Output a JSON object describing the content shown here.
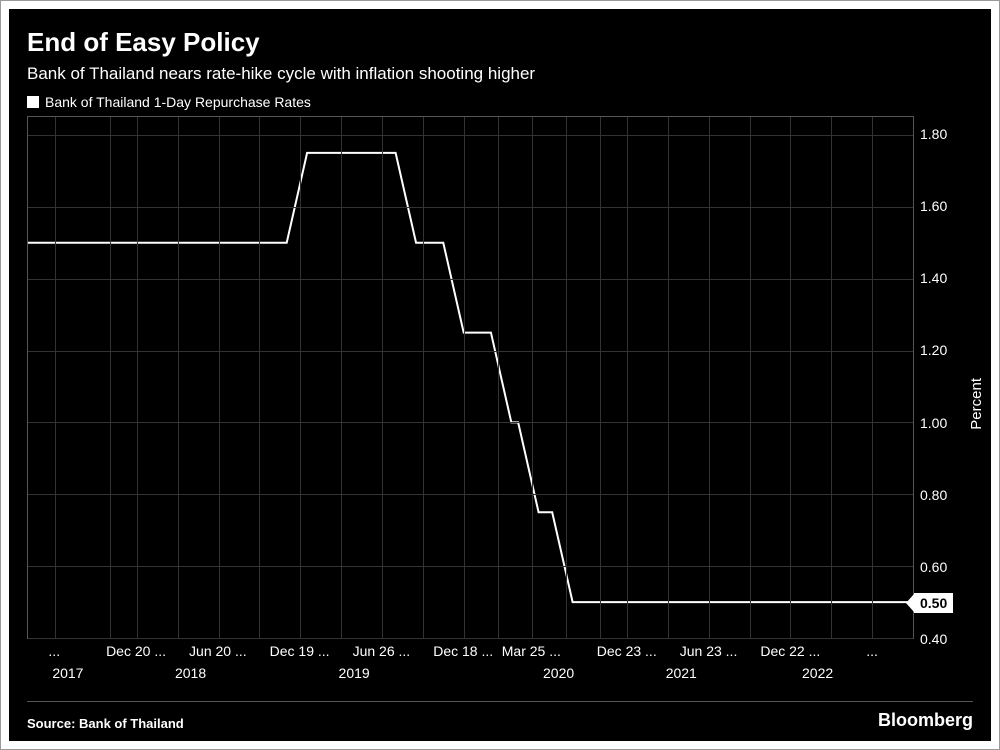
{
  "chart": {
    "type": "line-step",
    "title": "End of Easy Policy",
    "subtitle": "Bank of Thailand nears rate-hike cycle with inflation shooting higher",
    "legend_label": "Bank of Thailand 1-Day Repurchase Rates",
    "source": "Source: Bank of Thailand",
    "brand": "Bloomberg",
    "background_color": "#000000",
    "grid_color": "#333333",
    "text_color": "#ffffff",
    "line_color": "#ffffff",
    "line_width": 2,
    "title_fontsize": 26,
    "subtitle_fontsize": 17,
    "tick_fontsize": 14,
    "y_axis": {
      "label": "Percent",
      "min": 0.4,
      "max": 1.85,
      "ticks": [
        0.4,
        0.6,
        0.8,
        1.0,
        1.2,
        1.4,
        1.6,
        1.8
      ],
      "tick_labels": [
        "0.40",
        "0.60",
        "0.80",
        "1.00",
        "1.20",
        "1.40",
        "1.60",
        "1.80"
      ]
    },
    "x_axis": {
      "min": 0,
      "max": 65,
      "tick_positions": [
        2,
        8,
        14,
        20,
        26,
        32,
        37,
        44,
        50,
        56,
        62
      ],
      "tick_labels": [
        "...",
        "Dec 20 ...",
        "Jun 20 ...",
        "Dec 19 ...",
        "Jun 26 ...",
        "Dec 18 ...",
        "Mar 25 ...",
        "Dec 23 ...",
        "Jun 23 ...",
        "Dec 22 ...",
        "..."
      ],
      "year_positions": [
        3,
        12,
        24,
        39,
        48,
        58
      ],
      "year_labels": [
        "2017",
        "2018",
        "2019",
        "2020",
        "2021",
        "2022"
      ]
    },
    "grid_v_positions": [
      2,
      6,
      8,
      11,
      14,
      17,
      20,
      23,
      26,
      29,
      32,
      34.5,
      37,
      39.5,
      42,
      44,
      47,
      50,
      53,
      56,
      59,
      62,
      65
    ],
    "series": {
      "points": [
        [
          0,
          1.5
        ],
        [
          19,
          1.5
        ],
        [
          20.5,
          1.75
        ],
        [
          27,
          1.75
        ],
        [
          28.5,
          1.5
        ],
        [
          30.5,
          1.5
        ],
        [
          32,
          1.25
        ],
        [
          34,
          1.25
        ],
        [
          35.5,
          1.0
        ],
        [
          36,
          1.0
        ],
        [
          37.5,
          0.75
        ],
        [
          38.5,
          0.75
        ],
        [
          40,
          0.5
        ],
        [
          65,
          0.5
        ]
      ]
    },
    "last_value": "0.50"
  }
}
